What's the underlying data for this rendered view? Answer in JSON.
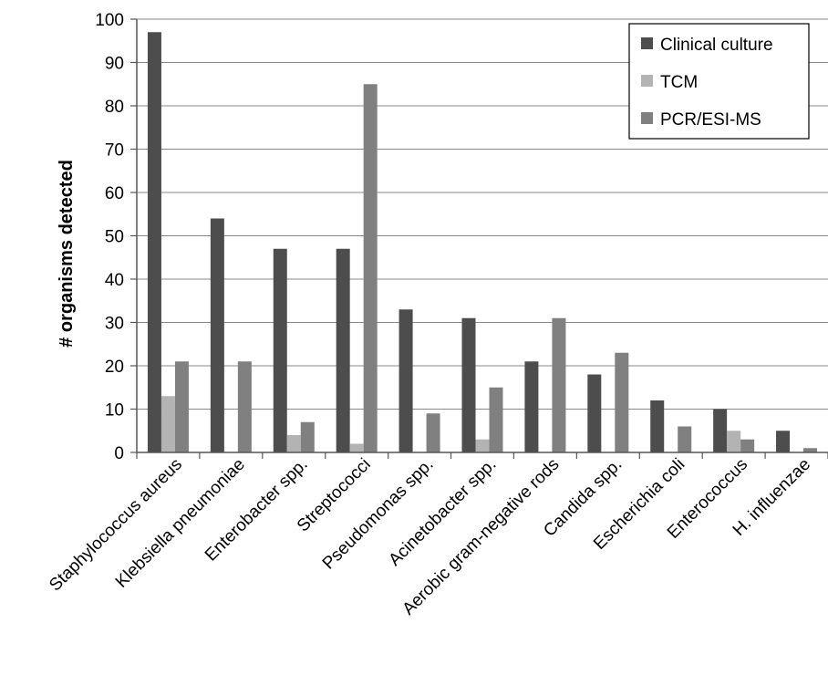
{
  "chart_data": {
    "type": "bar",
    "title": "",
    "xlabel": "",
    "ylabel": "# organisms detected",
    "ylim": [
      0,
      100
    ],
    "yticks": [
      "0",
      "10",
      "20",
      "30",
      "40",
      "50",
      "60",
      "70",
      "80",
      "90",
      "100"
    ],
    "grid": "horizontal",
    "legend_position": "top-right",
    "categories": [
      "Staphylococcus aureus",
      "Klebsiella pneumoniae",
      "Enterobacter spp.",
      "Streptococci",
      "Pseudomonas spp.",
      "Acinetobacter spp.",
      "Aerobic gram-negative rods",
      "Candida spp.",
      "Escherichia coli",
      "Enterococcus",
      "H. influenzae"
    ],
    "series": [
      {
        "name": "Clinical culture",
        "color": "#4d4d4d",
        "values": [
          97,
          54,
          47,
          47,
          33,
          31,
          21,
          18,
          12,
          10,
          5
        ]
      },
      {
        "name": "TCM",
        "color": "#b3b3b3",
        "values": [
          13,
          0,
          4,
          2,
          0,
          3,
          0,
          0,
          0,
          5,
          0
        ]
      },
      {
        "name": "PCR/ESI-MS",
        "color": "#808080",
        "values": [
          21,
          21,
          7,
          85,
          9,
          15,
          31,
          23,
          6,
          3,
          1
        ]
      }
    ]
  }
}
